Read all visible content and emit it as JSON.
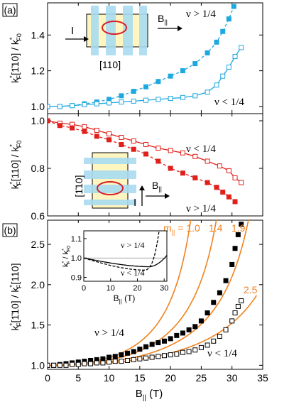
{
  "chart_data": [
    {
      "type": "line",
      "panel_label": "(a)",
      "ylabel_main": "k*F[1̄10] / k*F0",
      "ylim": [
        0.96,
        1.58
      ],
      "yticks": [
        "1.0",
        "1.2",
        "1.4"
      ],
      "xlim": [
        0,
        35
      ],
      "inset_label": "[110]",
      "inset_current": "I",
      "inset_field": "B||",
      "color": "#1ea8e0",
      "series": [
        {
          "name": "ν > 1/4",
          "marker": "filled-square",
          "dashed": true,
          "x": [
            0,
            2,
            4,
            6,
            8,
            10,
            12,
            14,
            16,
            18,
            20,
            22,
            24,
            26,
            27.5,
            28.5,
            29.5,
            30.3
          ],
          "y": [
            1.0,
            1.0,
            1.005,
            1.015,
            1.025,
            1.04,
            1.06,
            1.085,
            1.11,
            1.14,
            1.17,
            1.2,
            1.24,
            1.3,
            1.36,
            1.42,
            1.49,
            1.56
          ]
        },
        {
          "name": "ν < 1/4",
          "marker": "open-square",
          "dashed": false,
          "x": [
            0,
            2,
            4,
            6,
            8,
            10,
            12,
            14,
            16,
            18,
            20,
            22,
            24,
            26,
            27.5,
            28.5,
            29.5,
            30.5,
            31.5
          ],
          "y": [
            1.0,
            1.0,
            1.005,
            1.01,
            1.015,
            1.02,
            1.025,
            1.03,
            1.035,
            1.04,
            1.045,
            1.05,
            1.06,
            1.08,
            1.12,
            1.17,
            1.22,
            1.28,
            1.33
          ]
        }
      ]
    },
    {
      "type": "line",
      "ylabel_main": "k*F[110] / k*F0",
      "ylim": [
        0.6,
        1.03
      ],
      "yticks": [
        "0.6",
        "0.8",
        "1.0"
      ],
      "xlim": [
        0,
        35
      ],
      "inset_label": "[1̄10]",
      "inset_current": "I",
      "inset_field": "B||",
      "color": "#e0201a",
      "series": [
        {
          "name": "ν < 1/4",
          "marker": "open-square",
          "dashed": false,
          "x": [
            0,
            2,
            4,
            6,
            8,
            10,
            12,
            14,
            16,
            18,
            20,
            22,
            24,
            26,
            28,
            29.5,
            30.5,
            31.5
          ],
          "y": [
            1.0,
            0.99,
            0.985,
            0.975,
            0.96,
            0.945,
            0.93,
            0.915,
            0.9,
            0.885,
            0.875,
            0.865,
            0.85,
            0.83,
            0.81,
            0.79,
            0.76,
            0.74
          ]
        },
        {
          "name": "ν > 1/4",
          "marker": "filled-square",
          "dashed": true,
          "x": [
            0,
            2,
            4,
            6,
            8,
            10,
            12,
            14,
            16,
            18,
            20,
            22,
            24,
            26,
            27.5,
            28.5,
            29.5,
            30.5
          ],
          "y": [
            1.0,
            0.98,
            0.97,
            0.955,
            0.935,
            0.92,
            0.9,
            0.88,
            0.86,
            0.83,
            0.8,
            0.78,
            0.76,
            0.74,
            0.72,
            0.7,
            0.68,
            0.66
          ]
        }
      ]
    },
    {
      "type": "scatter",
      "panel_label": "(b)",
      "ylabel_main": "k*F[1̄10] / k*F[110]",
      "xlabel_main": "B",
      "xlabel_sub": "||",
      "xlabel_unit": " (T)",
      "xlim": [
        0,
        35
      ],
      "ylim": [
        0.95,
        2.8
      ],
      "xticks": [
        "0",
        "5",
        "10",
        "15",
        "20",
        "25",
        "30",
        "35"
      ],
      "yticks": [
        "1.0",
        "1.5",
        "2.0",
        "2.5"
      ],
      "series": [
        {
          "name": "ν > 1/4",
          "marker": "filled-square",
          "x": [
            0,
            1,
            2,
            3,
            4,
            5,
            6,
            7,
            8,
            9,
            10,
            11,
            12,
            13,
            14,
            15,
            16,
            17,
            18,
            19,
            20,
            21,
            22,
            23,
            24,
            25,
            26,
            27,
            28,
            29,
            30,
            30.5,
            31,
            31.5
          ],
          "y": [
            1.0,
            1.0,
            1.01,
            1.02,
            1.03,
            1.04,
            1.05,
            1.06,
            1.07,
            1.08,
            1.1,
            1.11,
            1.13,
            1.15,
            1.17,
            1.2,
            1.23,
            1.26,
            1.28,
            1.3,
            1.33,
            1.37,
            1.4,
            1.44,
            1.48,
            1.55,
            1.65,
            1.78,
            1.9,
            2.05,
            2.25,
            2.45,
            2.62,
            2.75
          ]
        },
        {
          "name": "ν < 1/4",
          "marker": "open-square",
          "x": [
            0,
            1,
            2,
            3,
            4,
            5,
            6,
            7,
            8,
            9,
            10,
            11,
            12,
            13,
            14,
            15,
            16,
            17,
            18,
            19,
            20,
            21,
            22,
            23,
            24,
            25,
            26,
            27,
            28,
            29,
            30,
            30.5,
            31,
            31.5
          ],
          "y": [
            1.0,
            1.0,
            1.0,
            1.0,
            1.01,
            1.01,
            1.02,
            1.02,
            1.03,
            1.03,
            1.04,
            1.05,
            1.05,
            1.06,
            1.07,
            1.08,
            1.09,
            1.1,
            1.11,
            1.12,
            1.13,
            1.14,
            1.16,
            1.17,
            1.19,
            1.22,
            1.25,
            1.3,
            1.36,
            1.44,
            1.55,
            1.65,
            1.73,
            1.8
          ]
        }
      ],
      "fit_curves": {
        "label_prefix": "m",
        "label_sub": "||",
        "color": "#f0821e",
        "values": [
          "1.0",
          "1.4",
          "1.9",
          "2.5"
        ],
        "label_eq_first": " = "
      },
      "inset": {
        "ylabel": "k*F / k*F0",
        "xlabel_main": "B",
        "xlabel_sub": "||",
        "xlabel_unit": " (T)",
        "xticks": [
          "0",
          "10",
          "20",
          "30"
        ],
        "yticks": [
          "0.9",
          "1.0",
          "1.1"
        ],
        "xlim": [
          0,
          31
        ],
        "ylim": [
          0.88,
          1.14
        ],
        "labels": [
          "ν > 1/4",
          "ν < 1/4"
        ]
      }
    }
  ]
}
